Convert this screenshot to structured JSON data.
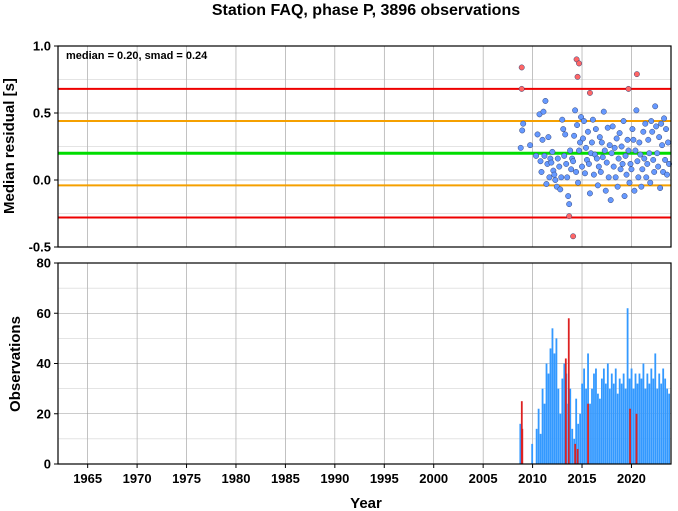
{
  "chart_data": [
    {
      "type": "scatter",
      "title": "Station FAQ, phase P, 3896 observations",
      "xlabel": "",
      "ylabel": "Median residual [s]",
      "annotation": "median = 0.20, smad = 0.24",
      "xlim": [
        1962,
        2024
      ],
      "ylim": [
        -0.5,
        1.0
      ],
      "yticks": [
        "-0.5",
        "0.0",
        "0.5",
        "1.0"
      ],
      "grid": true,
      "reference_lines": [
        {
          "y": 0.2,
          "color": "#00dd00"
        },
        {
          "y": 0.44,
          "color": "#f5a000"
        },
        {
          "y": -0.04,
          "color": "#f5a000"
        },
        {
          "y": 0.68,
          "color": "#ee0000"
        },
        {
          "y": -0.28,
          "color": "#ee0000"
        }
      ],
      "series": [
        {
          "color": "#6699ff",
          "points": [
            [
              2008.8,
              0.24
            ],
            [
              2008.95,
              0.37
            ],
            [
              2009.05,
              0.42
            ],
            [
              2009.75,
              0.26
            ],
            [
              2010.35,
              0.18
            ],
            [
              2010.5,
              0.34
            ],
            [
              2010.7,
              0.49
            ],
            [
              2010.8,
              0.14
            ],
            [
              2010.9,
              0.06
            ],
            [
              2011.0,
              0.3
            ],
            [
              2011.1,
              0.51
            ],
            [
              2011.2,
              0.18
            ],
            [
              2011.3,
              0.59
            ],
            [
              2011.4,
              -0.03
            ],
            [
              2011.5,
              0.12
            ],
            [
              2011.6,
              0.32
            ],
            [
              2011.7,
              0.02
            ],
            [
              2011.8,
              0.16
            ],
            [
              2011.9,
              0.13
            ],
            [
              2012.0,
              0.21
            ],
            [
              2012.1,
              0.07
            ],
            [
              2012.2,
              0.04
            ],
            [
              2012.3,
              0.0
            ],
            [
              2012.45,
              -0.05
            ],
            [
              2012.55,
              0.16
            ],
            [
              2012.7,
              0.1
            ],
            [
              2012.8,
              -0.07
            ],
            [
              2012.9,
              0.02
            ],
            [
              2013.0,
              0.45
            ],
            [
              2013.1,
              0.38
            ],
            [
              2013.2,
              0.18
            ],
            [
              2013.3,
              0.34
            ],
            [
              2013.4,
              0.12
            ],
            [
              2013.5,
              0.02
            ],
            [
              2013.6,
              -0.12
            ],
            [
              2013.7,
              -0.18
            ],
            [
              2013.8,
              0.22
            ],
            [
              2013.9,
              0.08
            ],
            [
              2014.0,
              0.16
            ],
            [
              2014.1,
              0.14
            ],
            [
              2014.2,
              0.33
            ],
            [
              2014.3,
              0.52
            ],
            [
              2014.4,
              0.06
            ],
            [
              2014.5,
              0.41
            ],
            [
              2014.6,
              -0.02
            ],
            [
              2014.7,
              0.22
            ],
            [
              2014.8,
              0.28
            ],
            [
              2014.9,
              0.47
            ],
            [
              2015.0,
              0.1
            ],
            [
              2015.1,
              0.31
            ],
            [
              2015.2,
              0.44
            ],
            [
              2015.3,
              0.05
            ],
            [
              2015.4,
              0.24
            ],
            [
              2015.5,
              0.15
            ],
            [
              2015.6,
              0.36
            ],
            [
              2015.7,
              0.12
            ],
            [
              2015.8,
              -0.1
            ],
            [
              2015.9,
              0.2
            ],
            [
              2016.0,
              0.28
            ],
            [
              2016.1,
              0.45
            ],
            [
              2016.2,
              0.04
            ],
            [
              2016.3,
              0.19
            ],
            [
              2016.4,
              0.38
            ],
            [
              2016.5,
              0.16
            ],
            [
              2016.6,
              -0.04
            ],
            [
              2016.7,
              0.1
            ],
            [
              2016.8,
              0.32
            ],
            [
              2016.9,
              0.06
            ],
            [
              2017.0,
              0.28
            ],
            [
              2017.1,
              0.17
            ],
            [
              2017.2,
              0.51
            ],
            [
              2017.3,
              0.22
            ],
            [
              2017.4,
              -0.08
            ],
            [
              2017.5,
              0.13
            ],
            [
              2017.6,
              0.39
            ],
            [
              2017.7,
              0.02
            ],
            [
              2017.8,
              0.26
            ],
            [
              2017.9,
              -0.15
            ],
            [
              2018.0,
              0.2
            ],
            [
              2018.1,
              0.4
            ],
            [
              2018.2,
              0.1
            ],
            [
              2018.3,
              0.24
            ],
            [
              2018.4,
              0.02
            ],
            [
              2018.5,
              0.31
            ],
            [
              2018.6,
              -0.05
            ],
            [
              2018.7,
              0.16
            ],
            [
              2018.8,
              0.35
            ],
            [
              2018.9,
              0.08
            ],
            [
              2019.0,
              0.25
            ],
            [
              2019.1,
              0.12
            ],
            [
              2019.2,
              0.44
            ],
            [
              2019.3,
              -0.12
            ],
            [
              2019.4,
              0.18
            ],
            [
              2019.5,
              0.04
            ],
            [
              2019.6,
              0.3
            ],
            [
              2019.7,
              0.22
            ],
            [
              2019.8,
              -0.02
            ],
            [
              2019.9,
              0.12
            ],
            [
              2020.0,
              0.08
            ],
            [
              2020.1,
              0.38
            ],
            [
              2020.2,
              0.3
            ],
            [
              2020.3,
              -0.08
            ],
            [
              2020.4,
              0.22
            ],
            [
              2020.5,
              0.52
            ],
            [
              2020.6,
              0.14
            ],
            [
              2020.7,
              0.02
            ],
            [
              2020.8,
              0.28
            ],
            [
              2020.9,
              0.19
            ],
            [
              2021.0,
              -0.05
            ],
            [
              2021.1,
              0.08
            ],
            [
              2021.2,
              0.36
            ],
            [
              2021.3,
              0.16
            ],
            [
              2021.4,
              0.42
            ],
            [
              2021.5,
              0.02
            ],
            [
              2021.6,
              0.12
            ],
            [
              2021.7,
              0.3
            ],
            [
              2021.8,
              0.2
            ],
            [
              2021.9,
              -0.02
            ],
            [
              2022.0,
              0.44
            ],
            [
              2022.1,
              0.36
            ],
            [
              2022.2,
              0.15
            ],
            [
              2022.3,
              0.06
            ],
            [
              2022.4,
              0.55
            ],
            [
              2022.5,
              0.4
            ],
            [
              2022.6,
              0.2
            ],
            [
              2022.7,
              0.1
            ],
            [
              2022.8,
              0.32
            ],
            [
              2022.9,
              -0.06
            ],
            [
              2023.0,
              0.42
            ],
            [
              2023.1,
              0.26
            ],
            [
              2023.2,
              0.06
            ],
            [
              2023.3,
              0.46
            ],
            [
              2023.4,
              0.15
            ],
            [
              2023.5,
              0.38
            ],
            [
              2023.6,
              0.04
            ],
            [
              2023.7,
              0.28
            ],
            [
              2023.8,
              0.12
            ]
          ]
        },
        {
          "color": "#ff6666",
          "points": [
            [
              2008.9,
              0.84
            ],
            [
              2008.9,
              0.68
            ],
            [
              2013.7,
              -0.27
            ],
            [
              2014.1,
              -0.42
            ],
            [
              2014.45,
              0.9
            ],
            [
              2014.7,
              0.87
            ],
            [
              2014.55,
              0.77
            ],
            [
              2015.8,
              0.65
            ],
            [
              2019.7,
              0.68
            ],
            [
              2020.55,
              0.79
            ]
          ]
        }
      ]
    },
    {
      "type": "bar",
      "xlabel": "Year",
      "ylabel": "Observations",
      "xlim": [
        1962,
        2024
      ],
      "ylim": [
        0,
        80
      ],
      "yticks": [
        "0",
        "20",
        "40",
        "60",
        "80"
      ],
      "xticks": [
        "1965",
        "1970",
        "1975",
        "1980",
        "1985",
        "1990",
        "1995",
        "2000",
        "2005",
        "2010",
        "2015",
        "2020"
      ],
      "grid": true,
      "series": [
        {
          "color": "#3399ff",
          "values": [
            [
              2008.75,
              16
            ],
            [
              2009.95,
              8
            ],
            [
              2010.4,
              14
            ],
            [
              2010.6,
              22
            ],
            [
              2010.8,
              12
            ],
            [
              2011.0,
              30
            ],
            [
              2011.2,
              24
            ],
            [
              2011.4,
              40
            ],
            [
              2011.6,
              36
            ],
            [
              2011.8,
              46
            ],
            [
              2012.0,
              54
            ],
            [
              2012.2,
              44
            ],
            [
              2012.4,
              50
            ],
            [
              2012.6,
              30
            ],
            [
              2012.8,
              20
            ],
            [
              2013.0,
              34
            ],
            [
              2013.2,
              40
            ],
            [
              2013.4,
              36
            ],
            [
              2013.6,
              24
            ],
            [
              2013.8,
              30
            ],
            [
              2014.0,
              14
            ],
            [
              2014.2,
              10
            ],
            [
              2014.4,
              26
            ],
            [
              2014.6,
              16
            ],
            [
              2014.8,
              20
            ],
            [
              2015.0,
              32
            ],
            [
              2015.2,
              38
            ],
            [
              2015.4,
              30
            ],
            [
              2015.6,
              44
            ],
            [
              2015.8,
              24
            ],
            [
              2016.0,
              30
            ],
            [
              2016.2,
              36
            ],
            [
              2016.4,
              38
            ],
            [
              2016.6,
              28
            ],
            [
              2016.8,
              26
            ],
            [
              2017.0,
              34
            ],
            [
              2017.2,
              38
            ],
            [
              2017.4,
              32
            ],
            [
              2017.6,
              40
            ],
            [
              2017.8,
              30
            ],
            [
              2018.0,
              36
            ],
            [
              2018.2,
              32
            ],
            [
              2018.4,
              38
            ],
            [
              2018.6,
              28
            ],
            [
              2018.8,
              34
            ],
            [
              2019.0,
              32
            ],
            [
              2019.2,
              36
            ],
            [
              2019.4,
              30
            ],
            [
              2019.6,
              62
            ],
            [
              2019.8,
              34
            ],
            [
              2020.0,
              38
            ],
            [
              2020.2,
              30
            ],
            [
              2020.4,
              36
            ],
            [
              2020.6,
              32
            ],
            [
              2020.8,
              36
            ],
            [
              2021.0,
              34
            ],
            [
              2021.2,
              40
            ],
            [
              2021.4,
              30
            ],
            [
              2021.6,
              36
            ],
            [
              2021.8,
              32
            ],
            [
              2022.0,
              38
            ],
            [
              2022.2,
              34
            ],
            [
              2022.4,
              44
            ],
            [
              2022.6,
              30
            ],
            [
              2022.8,
              36
            ],
            [
              2023.0,
              32
            ],
            [
              2023.2,
              38
            ],
            [
              2023.4,
              34
            ],
            [
              2023.6,
              30
            ],
            [
              2023.8,
              28
            ]
          ]
        },
        {
          "color": "#dd2222",
          "values": [
            [
              2008.9,
              25
            ],
            [
              2008.95,
              14
            ],
            [
              2013.35,
              42
            ],
            [
              2013.65,
              58
            ],
            [
              2014.3,
              8
            ],
            [
              2014.55,
              6
            ],
            [
              2015.6,
              24
            ],
            [
              2019.85,
              22
            ],
            [
              2020.5,
              20
            ]
          ]
        }
      ]
    }
  ]
}
